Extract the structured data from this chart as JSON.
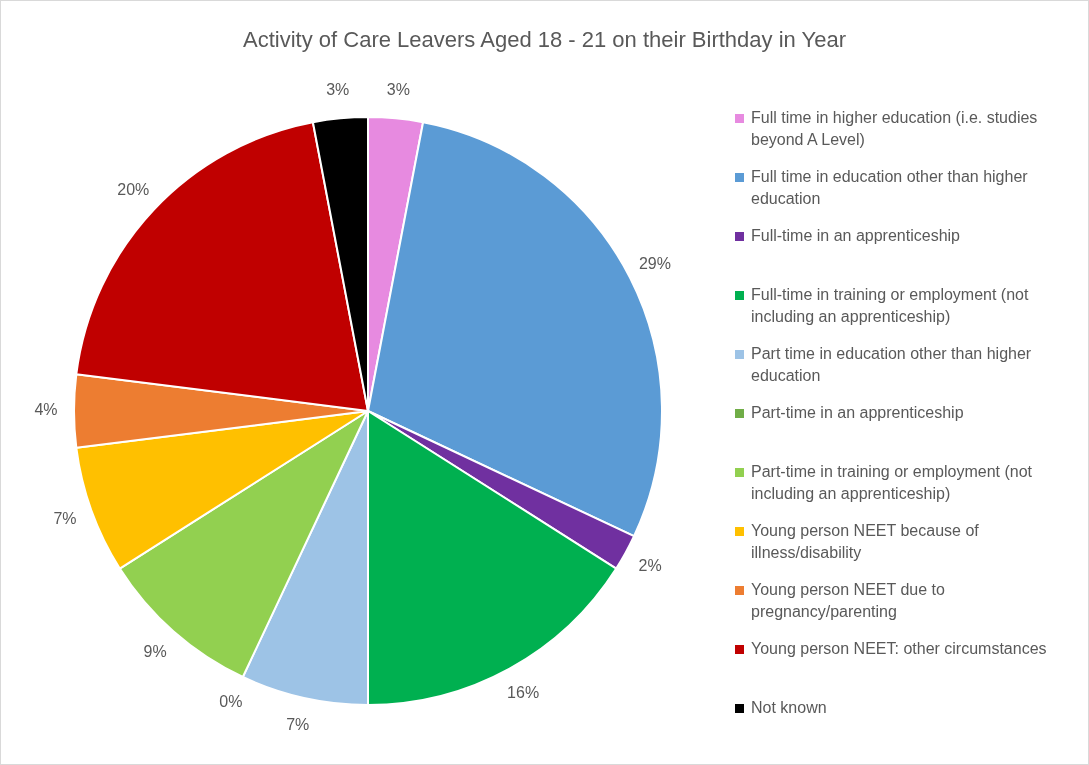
{
  "chart_data": {
    "type": "pie",
    "title": "Activity of Care Leavers Aged 18 - 21 on their Birthday in Year",
    "categories": [
      "Full time in higher education (i.e. studies beyond A Level)",
      "Full time in education other than higher education",
      "Full-time in an apprenticeship",
      "Full-time in training or employment (not including an apprenticeship)",
      "Part time in education other than higher education",
      "Part-time in an apprenticeship",
      "Part-time in training or employment (not including an apprenticeship)",
      "Young person NEET because of illness/disability",
      "Young person NEET due to pregnancy/parenting",
      "Young person NEET: other circumstances",
      "Not known"
    ],
    "values": [
      3,
      29,
      2,
      16,
      7,
      0,
      9,
      7,
      4,
      20,
      3
    ],
    "value_labels": [
      "3%",
      "29%",
      "2%",
      "16%",
      "7%",
      "0%",
      "9%",
      "7%",
      "4%",
      "20%",
      "3%"
    ],
    "colors": [
      "#e78ae0",
      "#5b9bd5",
      "#7030a0",
      "#00b050",
      "#9dc3e6",
      "#70ad47",
      "#92d050",
      "#ffc000",
      "#ed7d31",
      "#c00000",
      "#000000"
    ],
    "legend": "right"
  }
}
